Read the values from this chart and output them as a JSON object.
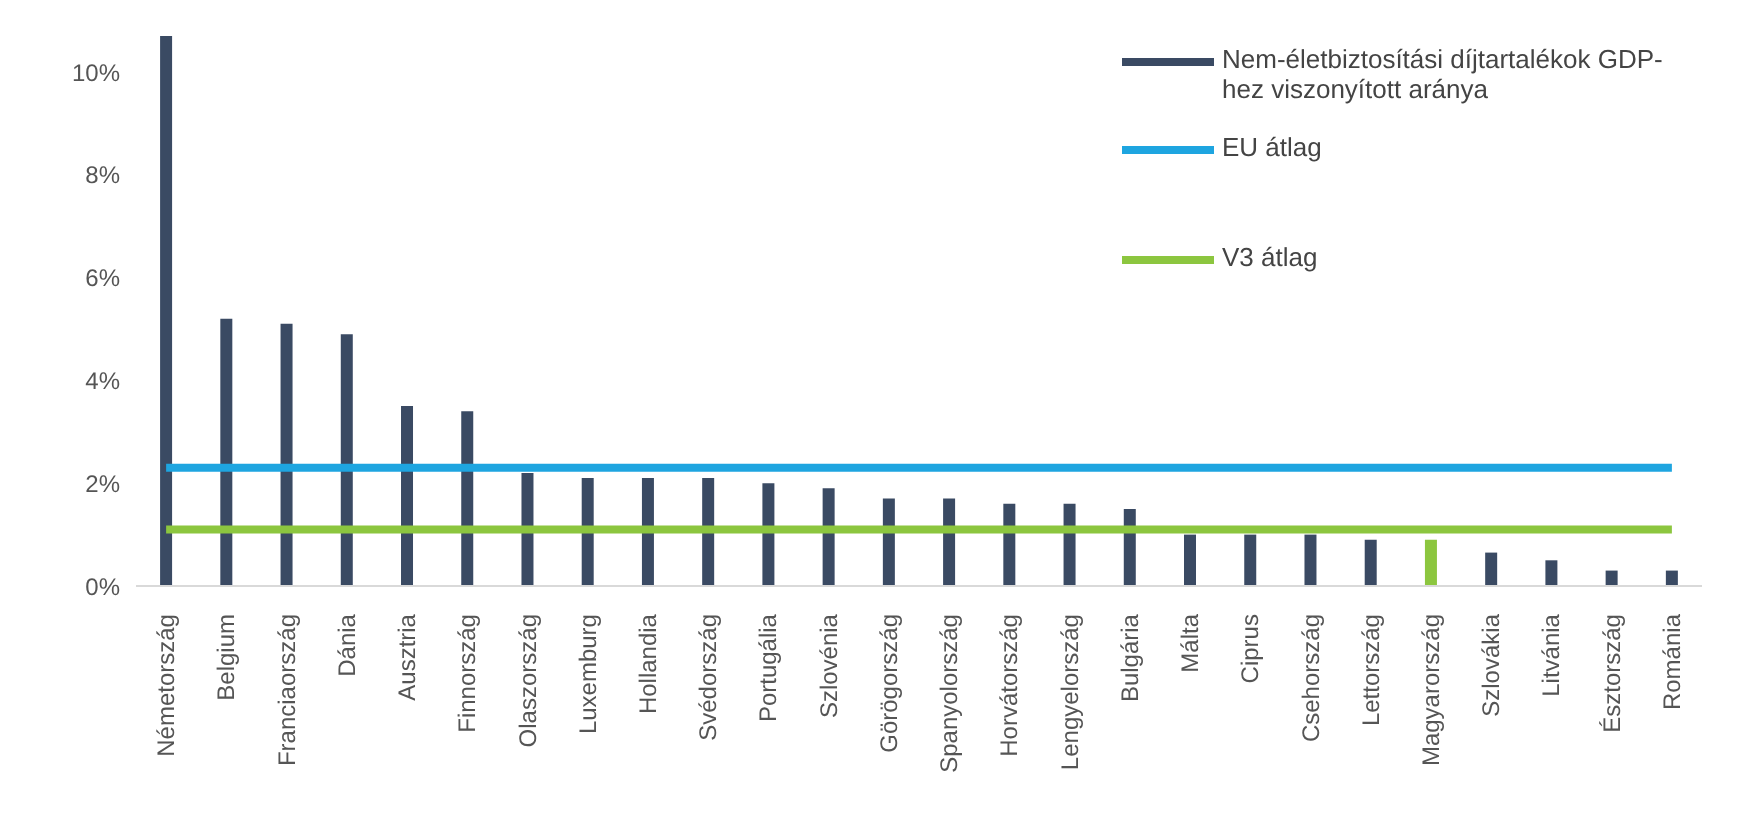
{
  "chart_data": {
    "type": "bar",
    "categories": [
      "Németország",
      "Belgium",
      "Franciaország",
      "Dánia",
      "Ausztria",
      "Finnország",
      "Olaszország",
      "Luxemburg",
      "Hollandia",
      "Svédország",
      "Portugália",
      "Szlovénia",
      "Görögország",
      "Spanyolország",
      "Horvátország",
      "Lengyelország",
      "Bulgária",
      "Málta",
      "Ciprus",
      "Csehország",
      "Lettország",
      "Magyarország",
      "Szlovákia",
      "Litvánia",
      "Észtország",
      "Románia"
    ],
    "series": [
      {
        "name": "Nem-életbiztosítási díjtartalékok GDP-hez viszonyított aránya",
        "color": "#3a4a63",
        "colors": [
          "#3a4a63",
          "#3a4a63",
          "#3a4a63",
          "#3a4a63",
          "#3a4a63",
          "#3a4a63",
          "#3a4a63",
          "#3a4a63",
          "#3a4a63",
          "#3a4a63",
          "#3a4a63",
          "#3a4a63",
          "#3a4a63",
          "#3a4a63",
          "#3a4a63",
          "#3a4a63",
          "#3a4a63",
          "#3a4a63",
          "#3a4a63",
          "#3a4a63",
          "#3a4a63",
          "#8cc63f",
          "#3a4a63",
          "#3a4a63",
          "#3a4a63",
          "#3a4a63"
        ],
        "values": [
          10.7,
          5.2,
          5.1,
          4.9,
          3.5,
          3.4,
          2.2,
          2.1,
          2.1,
          2.1,
          2.0,
          1.9,
          1.7,
          1.7,
          1.6,
          1.6,
          1.5,
          1.0,
          1.0,
          1.0,
          0.9,
          0.9,
          0.65,
          0.5,
          0.3,
          0.3
        ]
      },
      {
        "name": "EU átlag",
        "type": "line",
        "color": "#1ea5e0",
        "values": [
          2.3,
          2.3,
          2.3,
          2.3,
          2.3,
          2.3,
          2.3,
          2.3,
          2.3,
          2.3,
          2.3,
          2.3,
          2.3,
          2.3,
          2.3,
          2.3,
          2.3,
          2.3,
          2.3,
          2.3,
          2.3,
          2.3,
          2.3,
          2.3,
          2.3,
          2.3
        ]
      },
      {
        "name": "V3 átlag",
        "type": "line",
        "color": "#8cc63f",
        "values": [
          1.1,
          1.1,
          1.1,
          1.1,
          1.1,
          1.1,
          1.1,
          1.1,
          1.1,
          1.1,
          1.1,
          1.1,
          1.1,
          1.1,
          1.1,
          1.1,
          1.1,
          1.1,
          1.1,
          1.1,
          1.1,
          1.1,
          1.1,
          1.1,
          1.1,
          1.1
        ]
      }
    ],
    "ylim": [
      0,
      10.7
    ],
    "yticks": [
      {
        "value": 0,
        "label": "0%"
      },
      {
        "value": 2,
        "label": "2%"
      },
      {
        "value": 4,
        "label": "4%"
      },
      {
        "value": 6,
        "label": "6%"
      },
      {
        "value": 8,
        "label": "8%"
      },
      {
        "value": 10,
        "label": "10%"
      }
    ],
    "grid": false,
    "legend": "top right",
    "marker": "none"
  }
}
